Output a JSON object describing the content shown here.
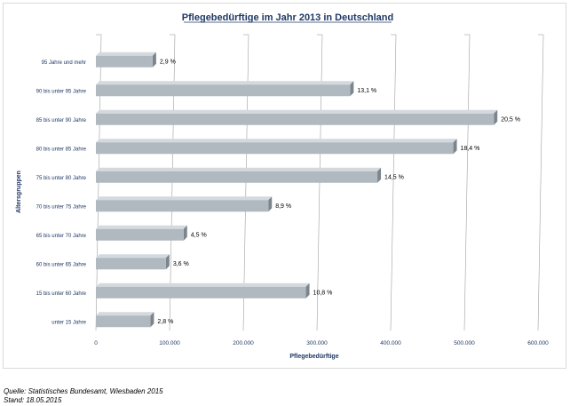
{
  "chart_data": {
    "type": "bar",
    "orientation": "horizontal",
    "title": "Pflegebedürftige im Jahr 2013 in Deutschland",
    "xlabel": "Pflegebedürftige",
    "ylabel": "Altersgruppen",
    "xlim": [
      0,
      600000
    ],
    "xticks": [
      "0",
      "100.000",
      "200.000",
      "300.000",
      "400.000",
      "500.000",
      "600.000"
    ],
    "grid": true,
    "categories": [
      "95 Jahre und mehr",
      "90 bis unter 95 Jahre",
      "85 bis unter 90 Jahre",
      "80 bis unter 85 Jahre",
      "75 bis unter 80 Jahre",
      "70 bis unter 75 Jahre",
      "65 bis unter 70 Jahre",
      "60 bis unter 65 Jahre",
      "15 bis unter 60 Jahre",
      "unter 15 Jahre"
    ],
    "values": [
      77000,
      345000,
      540000,
      485000,
      382000,
      234000,
      119000,
      95000,
      285000,
      74000
    ],
    "labels": [
      "2,9 %",
      "13,1 %",
      "20,5 %",
      "18,4 %",
      "14,5 %",
      "8,9 %",
      "4,5 %",
      "3,6 %",
      "10,8 %",
      "2,8 %"
    ],
    "colors": {
      "bar": "#b0b8c0",
      "bar_top": "#d4d9de",
      "bar_side": "#7c858e",
      "title": "#1f3864"
    }
  },
  "footer": {
    "source": "Quelle: Statistisches Bundesamt, Wiesbaden 2015",
    "date": "Stand: 18.05.2015"
  }
}
